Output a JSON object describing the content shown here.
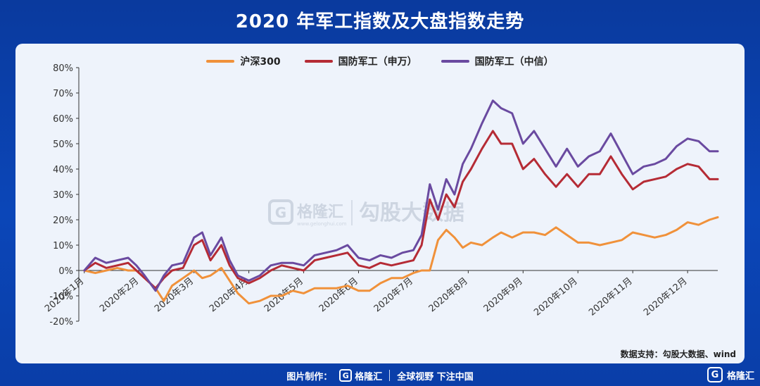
{
  "title": "2020 年军工指数及大盘指数走势",
  "source": "数据支持：勾股大数据、wind",
  "watermark": {
    "brand": "格隆汇",
    "sub": "www.gelonghui.com",
    "text": "勾股大数据"
  },
  "footer": {
    "made_by": "图片制作：",
    "brand": "格隆汇",
    "slogan": "全球视野 下注中国"
  },
  "corner": {
    "brand": "格隆汇"
  },
  "colors": {
    "hs300": "#f0913a",
    "sw": "#b52b35",
    "zx": "#6a4aa0",
    "axis": "#333333"
  },
  "chart_data": {
    "type": "line",
    "title": "2020 年军工指数及大盘指数走势",
    "xlabel": "",
    "ylabel": "",
    "ylim": [
      -20,
      80
    ],
    "y_ticks": [
      "80%",
      "70%",
      "60%",
      "50%",
      "40%",
      "30%",
      "20%",
      "10%",
      "0%",
      "-10%",
      "-20%"
    ],
    "y_tick_values": [
      80,
      70,
      60,
      50,
      40,
      30,
      20,
      10,
      0,
      -10,
      -20
    ],
    "x_ticks": [
      "2020年1月",
      "2020年2月",
      "2020年3月",
      "2020年4月",
      "2020年5月",
      "2020年6月",
      "2020年7月",
      "2020年8月",
      "2020年9月",
      "2020年10月",
      "2020年11月",
      "2020年12月"
    ],
    "x_tick_values": [
      0,
      1,
      2,
      3,
      4,
      5,
      6,
      7,
      8,
      9,
      10,
      11
    ],
    "xlim": [
      -0.1,
      11.55
    ],
    "legend_position": "top-center",
    "series": [
      {
        "name": "沪深300",
        "x": [
          0,
          0.2,
          0.4,
          0.6,
          0.8,
          0.95,
          1.1,
          1.3,
          1.45,
          1.6,
          1.8,
          2.0,
          2.15,
          2.3,
          2.5,
          2.65,
          2.8,
          3.0,
          3.2,
          3.4,
          3.6,
          3.8,
          4.0,
          4.2,
          4.4,
          4.6,
          4.8,
          5.0,
          5.2,
          5.4,
          5.6,
          5.8,
          6.0,
          6.15,
          6.3,
          6.45,
          6.6,
          6.75,
          6.9,
          7.05,
          7.25,
          7.45,
          7.6,
          7.8,
          8.0,
          8.2,
          8.4,
          8.6,
          8.8,
          9.0,
          9.2,
          9.4,
          9.6,
          9.8,
          10.0,
          10.2,
          10.4,
          10.6,
          10.8,
          11.0,
          11.2,
          11.4,
          11.55
        ],
        "values": [
          0,
          -1,
          0,
          1,
          0,
          0,
          -3,
          -7,
          -12,
          -6,
          -3,
          0,
          -3,
          -2,
          1,
          -4,
          -9,
          -13,
          -12,
          -10,
          -10,
          -8,
          -9,
          -7,
          -7,
          -7,
          -6,
          -8,
          -8,
          -5,
          -3,
          -3,
          -1,
          0,
          0,
          12,
          16,
          13,
          9,
          11,
          10,
          13,
          15,
          13,
          15,
          15,
          14,
          17,
          14,
          11,
          11,
          10,
          11,
          12,
          15,
          14,
          13,
          14,
          16,
          19,
          18,
          20,
          21
        ]
      },
      {
        "name": "国防军工（申万）",
        "x": [
          0,
          0.2,
          0.4,
          0.6,
          0.8,
          0.95,
          1.1,
          1.3,
          1.45,
          1.6,
          1.8,
          2.0,
          2.15,
          2.3,
          2.5,
          2.65,
          2.8,
          3.0,
          3.2,
          3.4,
          3.6,
          3.8,
          4.0,
          4.2,
          4.4,
          4.6,
          4.8,
          5.0,
          5.2,
          5.4,
          5.6,
          5.8,
          6.0,
          6.15,
          6.3,
          6.45,
          6.6,
          6.75,
          6.9,
          7.05,
          7.25,
          7.45,
          7.6,
          7.8,
          8.0,
          8.2,
          8.4,
          8.6,
          8.8,
          9.0,
          9.2,
          9.4,
          9.6,
          9.8,
          10.0,
          10.2,
          10.4,
          10.6,
          10.8,
          11.0,
          11.2,
          11.4,
          11.55
        ],
        "values": [
          0,
          3,
          1,
          2,
          3,
          0,
          -3,
          -7,
          -3,
          0,
          1,
          10,
          12,
          4,
          10,
          2,
          -3,
          -5,
          -3,
          0,
          2,
          1,
          0,
          4,
          5,
          6,
          7,
          2,
          1,
          3,
          2,
          3,
          4,
          10,
          28,
          20,
          30,
          25,
          35,
          40,
          48,
          55,
          50,
          50,
          40,
          44,
          38,
          33,
          38,
          33,
          38,
          38,
          45,
          38,
          32,
          35,
          36,
          37,
          40,
          42,
          41,
          36,
          36
        ]
      },
      {
        "name": "国防军工（中信）",
        "x": [
          0,
          0.2,
          0.4,
          0.6,
          0.8,
          0.95,
          1.1,
          1.3,
          1.45,
          1.6,
          1.8,
          2.0,
          2.15,
          2.3,
          2.5,
          2.65,
          2.8,
          3.0,
          3.2,
          3.4,
          3.6,
          3.8,
          4.0,
          4.2,
          4.4,
          4.6,
          4.8,
          5.0,
          5.2,
          5.4,
          5.6,
          5.8,
          6.0,
          6.15,
          6.3,
          6.45,
          6.6,
          6.75,
          6.9,
          7.05,
          7.25,
          7.45,
          7.6,
          7.8,
          8.0,
          8.2,
          8.4,
          8.6,
          8.8,
          9.0,
          9.2,
          9.4,
          9.6,
          9.8,
          10.0,
          10.2,
          10.4,
          10.6,
          10.8,
          11.0,
          11.2,
          11.4,
          11.55
        ],
        "values": [
          0,
          5,
          3,
          4,
          5,
          2,
          -2,
          -8,
          -2,
          2,
          3,
          13,
          15,
          6,
          13,
          4,
          -2,
          -4,
          -2,
          2,
          3,
          3,
          2,
          6,
          7,
          8,
          10,
          5,
          4,
          6,
          5,
          7,
          8,
          14,
          34,
          24,
          36,
          30,
          42,
          48,
          58,
          67,
          64,
          62,
          50,
          55,
          48,
          41,
          48,
          41,
          45,
          47,
          54,
          46,
          38,
          41,
          42,
          44,
          49,
          52,
          51,
          47,
          47
        ]
      }
    ]
  }
}
